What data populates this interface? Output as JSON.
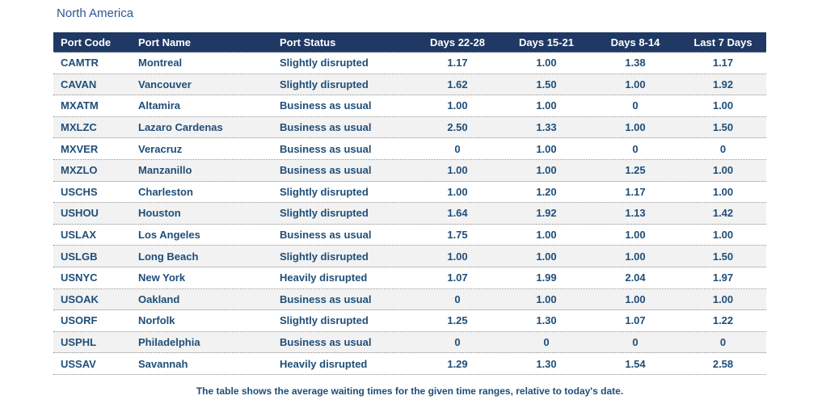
{
  "page": {
    "title": "North America",
    "footnote": "The table shows the average waiting times for the given time ranges, relative to today's date."
  },
  "colors": {
    "header_bg": "#1F3864",
    "header_text": "#FFFFFF",
    "row_text": "#1F4E79",
    "title_text": "#2E5597",
    "zebra_stripe": "#F2F2F2",
    "row_border": "#8F8F8F"
  },
  "table": {
    "columns": [
      "Port Code",
      "Port Name",
      "Port Status",
      "Days 22-28",
      "Days 15-21",
      "Days 8-14",
      "Last 7 Days"
    ],
    "rows": [
      [
        "CAMTR",
        "Montreal",
        "Slightly disrupted",
        "1.17",
        "1.00",
        "1.38",
        "1.17"
      ],
      [
        "CAVAN",
        "Vancouver",
        "Slightly disrupted",
        "1.62",
        "1.50",
        "1.00",
        "1.92"
      ],
      [
        "MXATM",
        "Altamira",
        "Business as usual",
        "1.00",
        "1.00",
        "0",
        "1.00"
      ],
      [
        "MXLZC",
        "Lazaro Cardenas",
        "Business as usual",
        "2.50",
        "1.33",
        "1.00",
        "1.50"
      ],
      [
        "MXVER",
        "Veracruz",
        "Business as usual",
        "0",
        "1.00",
        "0",
        "0"
      ],
      [
        "MXZLO",
        "Manzanillo",
        "Business as usual",
        "1.00",
        "1.00",
        "1.25",
        "1.00"
      ],
      [
        "USCHS",
        "Charleston",
        "Slightly disrupted",
        "1.00",
        "1.20",
        "1.17",
        "1.00"
      ],
      [
        "USHOU",
        "Houston",
        "Slightly disrupted",
        "1.64",
        "1.92",
        "1.13",
        "1.42"
      ],
      [
        "USLAX",
        "Los Angeles",
        "Business as usual",
        "1.75",
        "1.00",
        "1.00",
        "1.00"
      ],
      [
        "USLGB",
        "Long Beach",
        "Slightly disrupted",
        "1.00",
        "1.00",
        "1.00",
        "1.50"
      ],
      [
        "USNYC",
        "New York",
        "Heavily disrupted",
        "1.07",
        "1.99",
        "2.04",
        "1.97"
      ],
      [
        "USOAK",
        "Oakland",
        "Business as usual",
        "0",
        "1.00",
        "1.00",
        "1.00"
      ],
      [
        "USORF",
        "Norfolk",
        "Slightly disrupted",
        "1.25",
        "1.30",
        "1.07",
        "1.22"
      ],
      [
        "USPHL",
        "Philadelphia",
        "Business as usual",
        "0",
        "0",
        "0",
        "0"
      ],
      [
        "USSAV",
        "Savannah",
        "Heavily disrupted",
        "1.29",
        "1.30",
        "1.54",
        "2.58"
      ]
    ]
  },
  "chart_data": {
    "type": "table",
    "title": "North America",
    "columns": [
      "Port Code",
      "Port Name",
      "Port Status",
      "Days 22-28",
      "Days 15-21",
      "Days 8-14",
      "Last 7 Days"
    ],
    "rows": [
      {
        "port_code": "CAMTR",
        "port_name": "Montreal",
        "port_status": "Slightly disrupted",
        "days_22_28": 1.17,
        "days_15_21": 1.0,
        "days_8_14": 1.38,
        "last_7_days": 1.17
      },
      {
        "port_code": "CAVAN",
        "port_name": "Vancouver",
        "port_status": "Slightly disrupted",
        "days_22_28": 1.62,
        "days_15_21": 1.5,
        "days_8_14": 1.0,
        "last_7_days": 1.92
      },
      {
        "port_code": "MXATM",
        "port_name": "Altamira",
        "port_status": "Business as usual",
        "days_22_28": 1.0,
        "days_15_21": 1.0,
        "days_8_14": 0,
        "last_7_days": 1.0
      },
      {
        "port_code": "MXLZC",
        "port_name": "Lazaro Cardenas",
        "port_status": "Business as usual",
        "days_22_28": 2.5,
        "days_15_21": 1.33,
        "days_8_14": 1.0,
        "last_7_days": 1.5
      },
      {
        "port_code": "MXVER",
        "port_name": "Veracruz",
        "port_status": "Business as usual",
        "days_22_28": 0,
        "days_15_21": 1.0,
        "days_8_14": 0,
        "last_7_days": 0
      },
      {
        "port_code": "MXZLO",
        "port_name": "Manzanillo",
        "port_status": "Business as usual",
        "days_22_28": 1.0,
        "days_15_21": 1.0,
        "days_8_14": 1.25,
        "last_7_days": 1.0
      },
      {
        "port_code": "USCHS",
        "port_name": "Charleston",
        "port_status": "Slightly disrupted",
        "days_22_28": 1.0,
        "days_15_21": 1.2,
        "days_8_14": 1.17,
        "last_7_days": 1.0
      },
      {
        "port_code": "USHOU",
        "port_name": "Houston",
        "port_status": "Slightly disrupted",
        "days_22_28": 1.64,
        "days_15_21": 1.92,
        "days_8_14": 1.13,
        "last_7_days": 1.42
      },
      {
        "port_code": "USLAX",
        "port_name": "Los Angeles",
        "port_status": "Business as usual",
        "days_22_28": 1.75,
        "days_15_21": 1.0,
        "days_8_14": 1.0,
        "last_7_days": 1.0
      },
      {
        "port_code": "USLGB",
        "port_name": "Long Beach",
        "port_status": "Slightly disrupted",
        "days_22_28": 1.0,
        "days_15_21": 1.0,
        "days_8_14": 1.0,
        "last_7_days": 1.5
      },
      {
        "port_code": "USNYC",
        "port_name": "New York",
        "port_status": "Heavily disrupted",
        "days_22_28": 1.07,
        "days_15_21": 1.99,
        "days_8_14": 2.04,
        "last_7_days": 1.97
      },
      {
        "port_code": "USOAK",
        "port_name": "Oakland",
        "port_status": "Business as usual",
        "days_22_28": 0,
        "days_15_21": 1.0,
        "days_8_14": 1.0,
        "last_7_days": 1.0
      },
      {
        "port_code": "USORF",
        "port_name": "Norfolk",
        "port_status": "Slightly disrupted",
        "days_22_28": 1.25,
        "days_15_21": 1.3,
        "days_8_14": 1.07,
        "last_7_days": 1.22
      },
      {
        "port_code": "USPHL",
        "port_name": "Philadelphia",
        "port_status": "Business as usual",
        "days_22_28": 0,
        "days_15_21": 0,
        "days_8_14": 0,
        "last_7_days": 0
      },
      {
        "port_code": "USSAV",
        "port_name": "Savannah",
        "port_status": "Heavily disrupted",
        "days_22_28": 1.29,
        "days_15_21": 1.3,
        "days_8_14": 1.54,
        "last_7_days": 2.58
      }
    ],
    "footnote": "The table shows the average waiting times for the given time ranges, relative to today's date."
  }
}
